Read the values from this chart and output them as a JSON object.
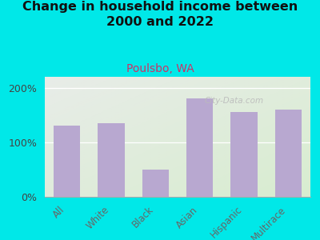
{
  "title": "Change in household income between\n2000 and 2022",
  "subtitle": "Poulsbo, WA",
  "categories": [
    "All",
    "White",
    "Black",
    "Asian",
    "Hispanic",
    "Multirace"
  ],
  "values": [
    130,
    135,
    50,
    180,
    155,
    160
  ],
  "bar_color": "#b8a8d0",
  "background_color": "#00e8e8",
  "plot_bg_topleft": "#e8ece8",
  "plot_bg_bottomright": "#d8ecd0",
  "title_fontsize": 11.5,
  "subtitle_fontsize": 10,
  "subtitle_color": "#cc3366",
  "watermark": "City-Data.com",
  "ylim": [
    0,
    220
  ],
  "yticks": [
    0,
    100,
    200
  ],
  "ytick_labels": [
    "0%",
    "100%",
    "200%"
  ]
}
